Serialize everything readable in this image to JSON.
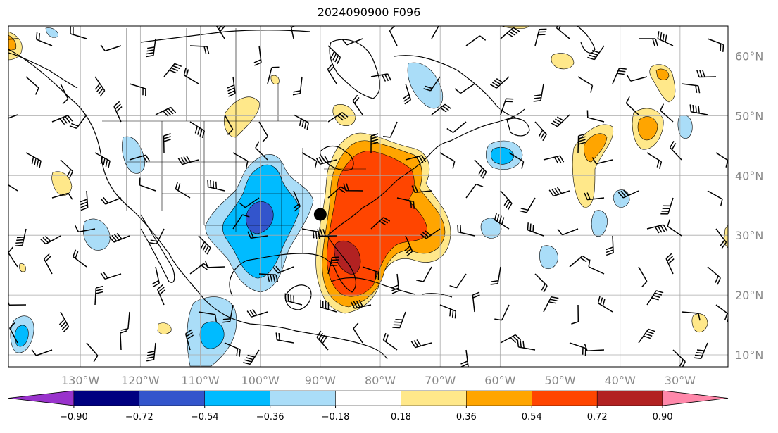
{
  "title": "2024090900 F096",
  "map": {
    "extent": {
      "lon": [
        -142,
        -22
      ],
      "lat": [
        8,
        65
      ]
    },
    "lon_ticks": [
      {
        "value": -130,
        "label": "130°W"
      },
      {
        "value": -120,
        "label": "120°W"
      },
      {
        "value": -110,
        "label": "110°W"
      },
      {
        "value": -100,
        "label": "100°W"
      },
      {
        "value": -90,
        "label": "90°W"
      },
      {
        "value": -80,
        "label": "80°W"
      },
      {
        "value": -70,
        "label": "70°W"
      },
      {
        "value": -60,
        "label": "60°W"
      },
      {
        "value": -50,
        "label": "50°W"
      },
      {
        "value": -40,
        "label": "40°W"
      },
      {
        "value": -30,
        "label": "30°W"
      }
    ],
    "lat_ticks": [
      {
        "value": 60,
        "label": "60°N"
      },
      {
        "value": 50,
        "label": "50°N"
      },
      {
        "value": 40,
        "label": "40°N"
      },
      {
        "value": 30,
        "label": "30°N"
      },
      {
        "value": 20,
        "label": "20°N"
      },
      {
        "value": 10,
        "label": "10°N"
      }
    ],
    "grid": true,
    "marker": {
      "lon": -90,
      "lat": 33.5,
      "color": "#000000"
    }
  },
  "colorbar": {
    "levels": [
      "−0.90",
      "−0.72",
      "−0.54",
      "−0.36",
      "−0.18",
      "0.18",
      "0.36",
      "0.54",
      "0.72",
      "0.90"
    ],
    "colors": [
      "#9933cc",
      "#000080",
      "#3355cc",
      "#00bbff",
      "#aaddf8",
      "#ffffff",
      "#ffe88a",
      "#ffa500",
      "#ff4500",
      "#b22222",
      "#ff88aa"
    ],
    "extend": "both"
  },
  "colors": {
    "land_lines": "#000000",
    "grid": "#aaaaaa",
    "tick_label": "#888888"
  }
}
